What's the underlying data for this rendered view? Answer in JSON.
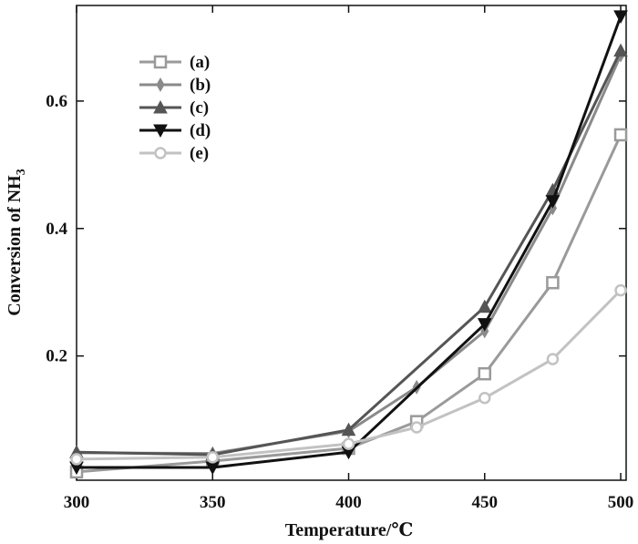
{
  "chart_data": {
    "type": "line",
    "xlabel": "Temperature/℃",
    "ylabel": {
      "main": "Conversion of NH",
      "sub": "3"
    },
    "xlim": [
      300,
      502
    ],
    "ylim": [
      0.005,
      0.75
    ],
    "x_ticks": [
      300,
      350,
      400,
      450,
      500
    ],
    "y_ticks": [
      0.2,
      0.4,
      0.6
    ],
    "y_tick_labels": [
      "0.2",
      "0.4",
      "0.6"
    ],
    "grid": false,
    "legend_position": "top-left",
    "series": [
      {
        "name": "(a)",
        "marker": "square",
        "color": "#9a9a9a",
        "x": [
          300,
          350,
          400,
          425,
          450,
          475,
          500
        ],
        "y": [
          0.018,
          0.035,
          0.055,
          0.097,
          0.172,
          0.315,
          0.547
        ]
      },
      {
        "name": "(b)",
        "marker": "diamond",
        "color": "#8a8a8a",
        "x": [
          300,
          350,
          400,
          425,
          450,
          475,
          500
        ],
        "y": [
          0.048,
          0.047,
          0.082,
          0.151,
          0.239,
          0.432,
          0.672
        ]
      },
      {
        "name": "(c)",
        "marker": "triangle-up",
        "color": "#555555",
        "x": [
          300,
          350,
          400,
          450,
          475,
          500
        ],
        "y": [
          0.049,
          0.045,
          0.084,
          0.277,
          0.46,
          0.679
        ]
      },
      {
        "name": "(d)",
        "marker": "triangle-down",
        "color": "#111111",
        "x": [
          300,
          350,
          400,
          450,
          475,
          500
        ],
        "y": [
          0.025,
          0.025,
          0.049,
          0.25,
          0.443,
          0.733
        ]
      },
      {
        "name": "(e)",
        "marker": "circle",
        "color": "#c2c2c2",
        "x": [
          300,
          350,
          400,
          425,
          450,
          475,
          500
        ],
        "y": [
          0.038,
          0.041,
          0.062,
          0.088,
          0.134,
          0.195,
          0.303
        ]
      }
    ]
  }
}
